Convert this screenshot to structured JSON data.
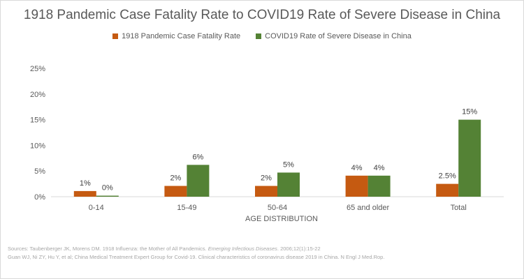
{
  "chart_data": {
    "type": "bar",
    "title": "1918 Pandemic Case Fatality Rate to COVID19 Rate of Severe Disease in China",
    "xlabel": "AGE DISTRIBUTION",
    "ylabel": "",
    "categories": [
      "0-14",
      "15-49",
      "50-64",
      "65 and older",
      "Total"
    ],
    "series": [
      {
        "name": "1918 Pandemic Case Fatality Rate",
        "color": "#c55a11",
        "values": [
          1.1,
          2.1,
          2.1,
          4.1,
          2.5
        ],
        "labels": [
          "1%",
          "2%",
          "2%",
          "4%",
          "2.5%"
        ]
      },
      {
        "name": "COVID19 Rate of Severe Disease in China",
        "color": "#548235",
        "values": [
          0.2,
          6.2,
          4.7,
          4.1,
          15.0
        ],
        "labels": [
          "0%",
          "6%",
          "5%",
          "4%",
          "15%"
        ]
      }
    ],
    "ylim": [
      0,
      25
    ],
    "yticks": [
      "0%",
      "5%",
      "10%",
      "15%",
      "20%",
      "25%"
    ],
    "grid": false,
    "legend_position": "top"
  },
  "sources": {
    "line1_prefix": "Sources: Taubenberger  JK, Morens DM. 1918 Influenza: the Mother of All Pandemics. ",
    "line1_italic": "Emerging Infectious Diseases",
    "line1_suffix": ". 2006;12(1):15-22",
    "line2": "Guan  WJ, Ni  ZY, Hu  Y,  et al; China Medical Treatment  Expert  Group for Covid-19.  Clinical characteristics  of coronavirus disease  2019 in China.  N Engl J Med.Rop."
  }
}
